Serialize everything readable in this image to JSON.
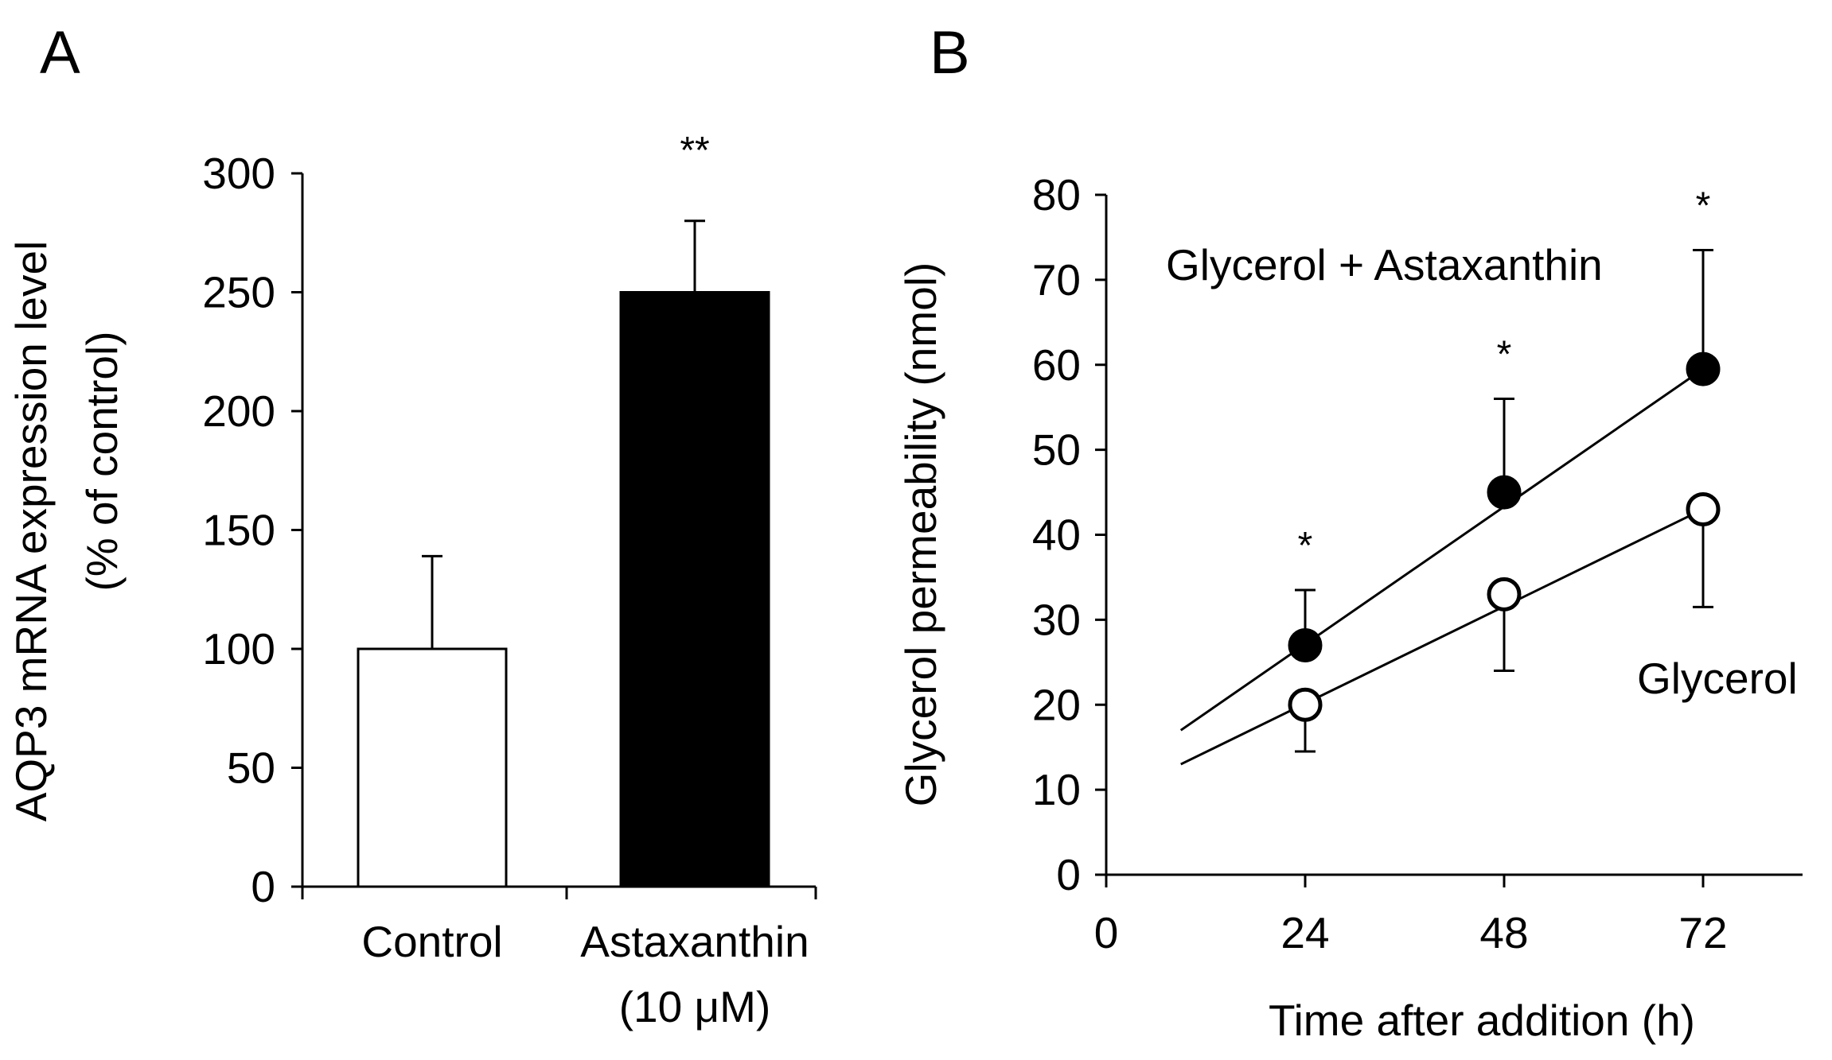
{
  "figure": {
    "panels": [
      "A",
      "B"
    ]
  },
  "chart_data": [
    {
      "type": "bar",
      "panel": "A",
      "categories": [
        "Control",
        "Astaxanthin"
      ],
      "category_sublabels": [
        "",
        "(10 μM)"
      ],
      "values": [
        100,
        250
      ],
      "errors": [
        39,
        30
      ],
      "fills": [
        "#ffffff",
        "#000000"
      ],
      "significance": [
        "",
        "**"
      ],
      "ylabel": "AQP3 mRNA expression level",
      "ylabel2": "(% of control)",
      "ylim": [
        0,
        300
      ],
      "yticks": [
        "0",
        "50",
        "100",
        "150",
        "200",
        "250",
        "300"
      ]
    },
    {
      "type": "scatter",
      "panel": "B",
      "xlabel": "Time after addition (h)",
      "ylabel": "Glycerol permeability (nmol)",
      "xlim": [
        0,
        84
      ],
      "ylim": [
        0,
        80
      ],
      "xticks": [
        "0",
        "24",
        "48",
        "72"
      ],
      "yticks": [
        "0",
        "10",
        "20",
        "30",
        "40",
        "50",
        "60",
        "70",
        "80"
      ],
      "series": [
        {
          "name": "Glycerol + Astaxanthin",
          "marker": "filled-circle",
          "x": [
            24,
            48,
            72
          ],
          "y": [
            27,
            45,
            59.5
          ],
          "err": [
            6.5,
            11,
            14
          ],
          "err_dir": "up",
          "significance": [
            "*",
            "*",
            "*"
          ],
          "trend": {
            "x0": 9,
            "y0": 17,
            "x1": 72,
            "y1": 59.5
          }
        },
        {
          "name": "Glycerol",
          "marker": "open-circle",
          "x": [
            24,
            48,
            72
          ],
          "y": [
            20,
            33,
            43
          ],
          "err": [
            5.5,
            9,
            11.5
          ],
          "err_dir": "down",
          "significance": [
            "",
            "",
            ""
          ],
          "trend": {
            "x0": 9,
            "y0": 13,
            "x1": 72,
            "y1": 43
          }
        }
      ]
    }
  ]
}
